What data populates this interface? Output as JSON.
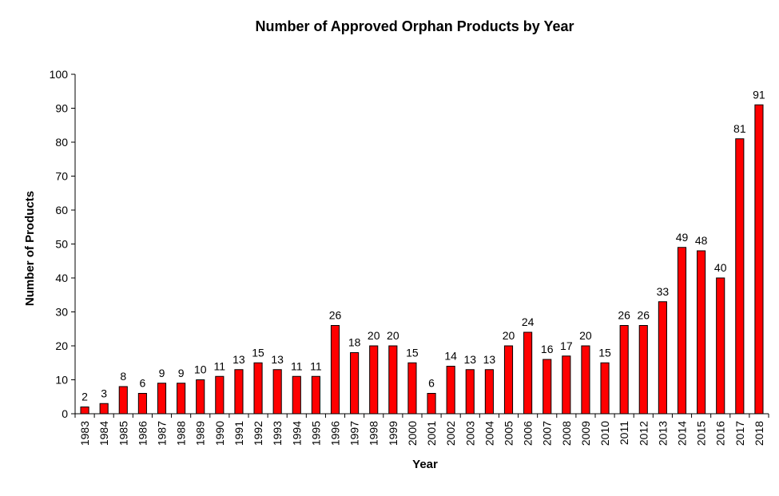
{
  "chart_data": {
    "type": "bar",
    "title": "Number of Approved Orphan Products by Year",
    "xlabel": "Year",
    "ylabel": "Number of Products",
    "ylim": [
      0,
      100
    ],
    "yticks": [
      "0",
      "10",
      "20",
      "30",
      "40",
      "50",
      "60",
      "70",
      "80",
      "90",
      "100"
    ],
    "categories": [
      "1983",
      "1984",
      "1985",
      "1986",
      "1987",
      "1988",
      "1989",
      "1990",
      "1991",
      "1992",
      "1993",
      "1994",
      "1995",
      "1996",
      "1997",
      "1998",
      "1999",
      "2000",
      "2001",
      "2002",
      "2003",
      "2004",
      "2005",
      "2006",
      "2007",
      "2008",
      "2009",
      "2010",
      "2011",
      "2012",
      "2013",
      "2014",
      "2015",
      "2016",
      "2017",
      "2018"
    ],
    "values": [
      2,
      3,
      8,
      6,
      9,
      9,
      10,
      11,
      13,
      15,
      13,
      11,
      11,
      26,
      18,
      20,
      20,
      15,
      6,
      14,
      13,
      13,
      20,
      24,
      16,
      17,
      20,
      15,
      26,
      26,
      33,
      49,
      48,
      40,
      81,
      91
    ],
    "data_labels": [
      "2",
      "3",
      "8",
      "6",
      "9",
      "9",
      "10",
      "11",
      "13",
      "15",
      "13",
      "11",
      "11",
      "26",
      "18",
      "20",
      "20",
      "15",
      "6",
      "14",
      "13",
      "13",
      "20",
      "24",
      "16",
      "17",
      "20",
      "15",
      "26",
      "26",
      "33",
      "49",
      "48",
      "40",
      "81",
      "91"
    ],
    "bar_color": "#ff0000",
    "bar_edge_color": "#000000",
    "grid": false,
    "legend": false
  }
}
